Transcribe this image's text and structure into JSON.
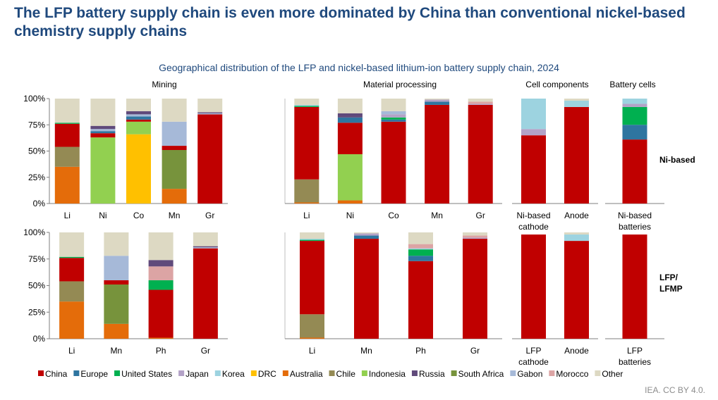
{
  "title": "The LFP battery supply chain is even more dominated by China than conventional nickel-based chemistry supply chains",
  "source": "IEA. CC BY 4.0.",
  "colors": {
    "China": "#c00000",
    "Europe": "#2e75a0",
    "United States": "#00b050",
    "Japan": "#b3a2c7",
    "Korea": "#9dd3e0",
    "DRC": "#ffc000",
    "Australia": "#e46c0a",
    "Chile": "#948a54",
    "Indonesia": "#92d050",
    "Russia": "#604a7b",
    "South Africa": "#77933c",
    "Gabon": "#a6b9d8",
    "Morocco": "#dca4a4",
    "Other": "#ddd9c3"
  },
  "chart_data": {
    "type": "bar",
    "stacked": true,
    "title": "Geographical distribution of the LFP and nickel-based lithium-ion battery supply chain, 2024",
    "y_ticks": [
      "100%",
      "75%",
      "50%",
      "25%",
      "0%"
    ],
    "ylim": [
      0,
      100
    ],
    "legend": [
      "China",
      "Europe",
      "United States",
      "Japan",
      "Korea",
      "DRC",
      "Australia",
      "Chile",
      "Indonesia",
      "Russia",
      "South Africa",
      "Gabon",
      "Morocco",
      "Other"
    ],
    "legend_position": "bottom",
    "stack_order": [
      "Australia",
      "DRC",
      "South Africa",
      "Indonesia",
      "Chile",
      "China",
      "Europe",
      "United States",
      "Japan",
      "Korea",
      "Gabon",
      "Morocco",
      "Russia",
      "Other"
    ],
    "section_labels": [
      "Mining",
      "Material processing",
      "Cell components",
      "Battery cells"
    ],
    "row_labels": [
      "Ni-based",
      "LFP/\nLFMP"
    ],
    "panels": [
      {
        "row": "Ni-based",
        "section": "Mining",
        "categories": [
          "Li",
          "Ni",
          "Co",
          "Mn",
          "Gr"
        ],
        "bars": [
          {
            "Australia": 35,
            "Chile": 19,
            "China": 22,
            "United States": 1,
            "Other": 23
          },
          {
            "Indonesia": 63,
            "China": 4,
            "Russia": 3,
            "Europe": 2,
            "Gabon": 2,
            "Other": 26
          },
          {
            "DRC": 66,
            "Indonesia": 12,
            "China": 2,
            "Russia": 3,
            "Europe": 3,
            "Gabon": 2,
            "Other": 12
          },
          {
            "Australia": 14,
            "China": 4,
            "South Africa": 37,
            "Gabon": 23,
            "Other": 22
          },
          {
            "China": 85,
            "Russia": 1,
            "Gabon": 1,
            "Other": 13
          }
        ]
      },
      {
        "row": "Ni-based",
        "section": "Material processing",
        "categories": [
          "Li",
          "Ni",
          "Co",
          "Mn",
          "Gr"
        ],
        "bars": [
          {
            "China": 69,
            "Chile": 22,
            "Australia": 1,
            "United States": 1,
            "Korea": 1,
            "Other": 6
          },
          {
            "China": 30,
            "Australia": 3,
            "Europe": 5,
            "Indonesia": 44,
            "Russia": 4,
            "Other": 14
          },
          {
            "China": 78,
            "Europe": 2,
            "United States": 2,
            "Japan": 3,
            "Gabon": 3,
            "Other": 12
          },
          {
            "China": 94,
            "Europe": 3,
            "Japan": 2,
            "Other": 1
          },
          {
            "China": 94,
            "Japan": 1,
            "Morocco": 2,
            "Other": 3
          }
        ]
      },
      {
        "row": "Ni-based",
        "section": "Cell components",
        "categories": [
          "Ni-based\ncathode",
          "Anode"
        ],
        "bars": [
          {
            "China": 65,
            "Japan": 6,
            "Korea": 29
          },
          {
            "China": 92,
            "Korea": 6,
            "Other": 2
          }
        ]
      },
      {
        "row": "Ni-based",
        "section": "Battery cells",
        "categories": [
          "Ni-based\nbatteries"
        ],
        "bars": [
          {
            "China": 61,
            "United States": 17,
            "Europe": 14,
            "Korea": 5,
            "Japan": 3
          }
        ]
      },
      {
        "row": "LFP/\nLFMP",
        "section": "Mining",
        "categories": [
          "Li",
          "Mn",
          "Ph",
          "Gr"
        ],
        "bars": [
          {
            "Australia": 35,
            "Chile": 19,
            "China": 22,
            "United States": 1,
            "Other": 23
          },
          {
            "Australia": 14,
            "China": 4,
            "South Africa": 37,
            "Gabon": 23,
            "Other": 22
          },
          {
            "Australia": 1,
            "China": 45,
            "Russia": 6,
            "United States": 9,
            "Morocco": 13,
            "Other": 26
          },
          {
            "China": 85,
            "Russia": 1,
            "Gabon": 1,
            "Other": 13
          }
        ]
      },
      {
        "row": "LFP/\nLFMP",
        "section": "Material processing",
        "categories": [
          "Li",
          "Mn",
          "Ph",
          "Gr"
        ],
        "bars": [
          {
            "China": 69,
            "Chile": 22,
            "Australia": 1,
            "United States": 1,
            "Korea": 1,
            "Other": 6
          },
          {
            "China": 94,
            "Europe": 3,
            "Japan": 2,
            "Other": 1
          },
          {
            "China": 73,
            "Europe": 5,
            "United States": 6,
            "Korea": 1,
            "Morocco": 4,
            "Other": 11
          },
          {
            "China": 94,
            "Japan": 1,
            "Morocco": 2,
            "Other": 3
          }
        ]
      },
      {
        "row": "LFP/\nLFMP",
        "section": "Cell components",
        "categories": [
          "LFP\ncathode",
          "Anode"
        ],
        "bars": [
          {
            "China": 98
          },
          {
            "China": 92,
            "Korea": 6,
            "Other": 2
          }
        ]
      },
      {
        "row": "LFP/\nLFMP",
        "section": "Battery cells",
        "categories": [
          "LFP\nbatteries"
        ],
        "bars": [
          {
            "China": 98
          }
        ]
      }
    ]
  }
}
